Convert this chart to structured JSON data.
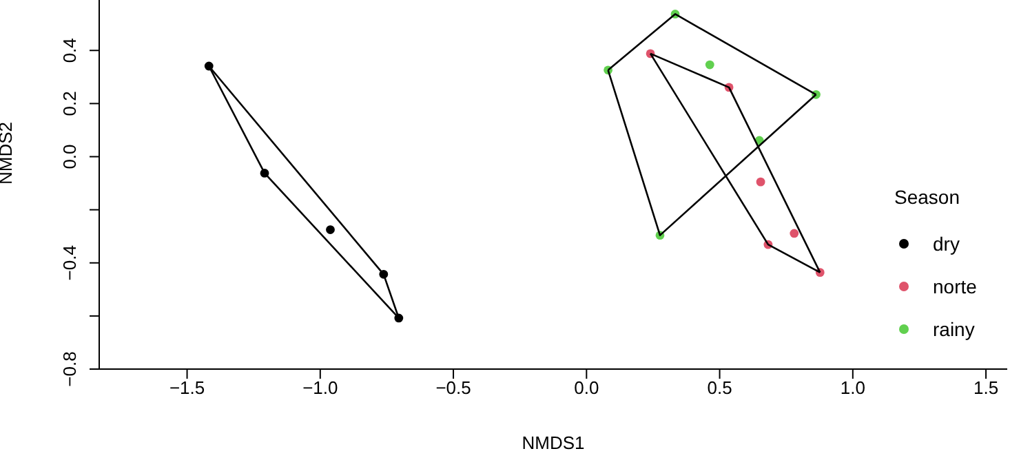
{
  "chart_data": {
    "type": "scatter",
    "xlabel": "NMDS1",
    "ylabel": "NMDS2",
    "legend_title": "Season",
    "legend": "right",
    "grid": false,
    "marker": "circle",
    "xlim": [
      -1.83,
      1.58
    ],
    "xticks": [
      {
        "value": -1.5,
        "label": "−1.5"
      },
      {
        "value": -1.0,
        "label": "−1.0"
      },
      {
        "value": -0.5,
        "label": "−0.5"
      },
      {
        "value": 0.0,
        "label": "0.0"
      },
      {
        "value": 0.5,
        "label": "0.5"
      },
      {
        "value": 1.0,
        "label": "1.0"
      },
      {
        "value": 1.5,
        "label": "1.5"
      }
    ],
    "ylim": [
      -0.8,
      0.59
    ],
    "yticks": [
      {
        "value": -0.8,
        "label": "−0.8"
      },
      {
        "value": -0.6,
        "label": null
      },
      {
        "value": -0.4,
        "label": "−0.4"
      },
      {
        "value": -0.2,
        "label": null
      },
      {
        "value": 0.0,
        "label": "0.0"
      },
      {
        "value": 0.2,
        "label": "0.2"
      },
      {
        "value": 0.4,
        "label": "0.4"
      }
    ],
    "series": [
      {
        "name": "dry",
        "color": "#000000",
        "x": [
          -1.418,
          -1.209,
          -0.962,
          -0.762,
          -0.705
        ],
        "values": [
          0.341,
          -0.062,
          -0.275,
          -0.443,
          -0.608
        ]
      },
      {
        "name": "norte",
        "color": "#df536b",
        "x": [
          0.24,
          0.535,
          0.654,
          0.78,
          0.682,
          0.877
        ],
        "values": [
          0.388,
          0.261,
          -0.095,
          -0.289,
          -0.331,
          -0.436
        ]
      },
      {
        "name": "rainy",
        "color": "#61d04f",
        "x": [
          0.333,
          0.081,
          0.463,
          0.862,
          0.649,
          0.276
        ],
        "values": [
          0.537,
          0.326,
          0.346,
          0.234,
          0.061,
          -0.296
        ]
      },
      {
        "type": "line",
        "marker": "none",
        "color": "#000000",
        "x": [
          -1.418,
          -0.762,
          -0.705
        ],
        "values": [
          0.341,
          -0.443,
          -0.608
        ]
      },
      {
        "type": "line",
        "marker": "none",
        "color": "#000000",
        "x": [
          -1.418,
          -1.209,
          -0.705
        ],
        "values": [
          0.341,
          -0.062,
          -0.608
        ]
      },
      {
        "type": "line",
        "marker": "none",
        "color": "#000000",
        "x": [
          0.24,
          0.535,
          0.877
        ],
        "values": [
          0.388,
          0.261,
          -0.436
        ]
      },
      {
        "type": "line",
        "marker": "none",
        "color": "#000000",
        "x": [
          0.24,
          0.682,
          0.877
        ],
        "values": [
          0.388,
          -0.331,
          -0.436
        ]
      },
      {
        "type": "line",
        "marker": "none",
        "color": "#000000",
        "x": [
          0.081,
          0.333,
          0.862
        ],
        "values": [
          0.326,
          0.537,
          0.234
        ]
      },
      {
        "type": "line",
        "marker": "none",
        "color": "#000000",
        "x": [
          0.081,
          0.276,
          0.862
        ],
        "values": [
          0.326,
          -0.296,
          0.234
        ]
      }
    ]
  }
}
